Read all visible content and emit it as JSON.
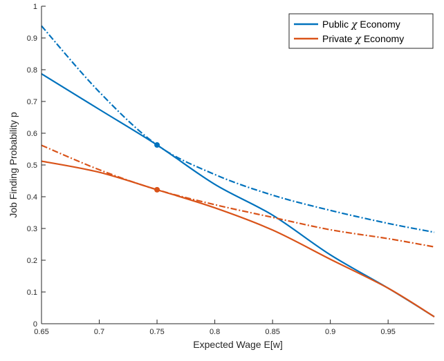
{
  "chart_data": {
    "type": "line",
    "xlabel": "Expected Wage E[w]",
    "ylabel": "Job Finding Probability p",
    "xlim": [
      0.65,
      0.99
    ],
    "ylim": [
      0,
      1
    ],
    "xticks": [
      0.65,
      0.7,
      0.75,
      0.8,
      0.85,
      0.9,
      0.95
    ],
    "yticks": [
      0,
      0.1,
      0.2,
      0.3,
      0.4,
      0.5,
      0.6,
      0.7,
      0.8,
      0.9,
      1
    ],
    "grid": false,
    "legend_position": "top-right",
    "legend": [
      {
        "prefix": "Public ",
        "symbol": "χ",
        "suffix": " Economy",
        "color": "#0072BD"
      },
      {
        "prefix": "Private ",
        "symbol": "χ",
        "suffix": " Economy",
        "color": "#D95319"
      }
    ],
    "series": [
      {
        "name": "Public χ Economy",
        "color": "#0072BD",
        "style": "solid",
        "x": [
          0.65,
          0.7,
          0.75,
          0.8,
          0.85,
          0.9,
          0.95,
          0.99
        ],
        "y": [
          0.787,
          0.675,
          0.563,
          0.439,
          0.342,
          0.217,
          0.112,
          0.022
        ]
      },
      {
        "name": "Public χ Economy (dash-dot)",
        "color": "#0072BD",
        "style": "dashdot",
        "x": [
          0.65,
          0.7,
          0.75,
          0.8,
          0.85,
          0.9,
          0.95,
          0.99
        ],
        "y": [
          0.938,
          0.73,
          0.563,
          0.47,
          0.405,
          0.357,
          0.316,
          0.288
        ]
      },
      {
        "name": "Private χ Economy",
        "color": "#D95319",
        "style": "solid",
        "x": [
          0.65,
          0.7,
          0.75,
          0.8,
          0.85,
          0.9,
          0.95,
          0.99
        ],
        "y": [
          0.512,
          0.477,
          0.422,
          0.365,
          0.295,
          0.203,
          0.112,
          0.022
        ]
      },
      {
        "name": "Private χ Economy (dash-dot)",
        "color": "#D95319",
        "style": "dashdot",
        "x": [
          0.65,
          0.7,
          0.75,
          0.8,
          0.85,
          0.9,
          0.95,
          0.99
        ],
        "y": [
          0.562,
          0.485,
          0.422,
          0.375,
          0.335,
          0.296,
          0.268,
          0.242
        ]
      }
    ],
    "markers": [
      {
        "x": 0.75,
        "y": 0.563,
        "color": "#0072BD"
      },
      {
        "x": 0.75,
        "y": 0.422,
        "color": "#D95319"
      }
    ]
  }
}
